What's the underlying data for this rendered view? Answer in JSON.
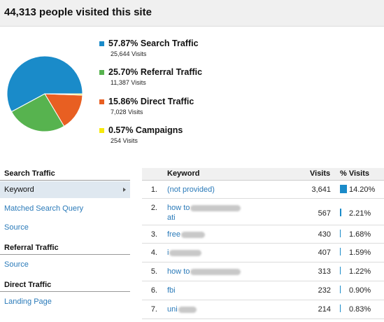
{
  "header": {
    "title": "44,313 people visited this site"
  },
  "colors": {
    "search": "#1a8bc9",
    "referral": "#57b34f",
    "direct": "#e85f22",
    "campaigns": "#f6e90d"
  },
  "chart_data": {
    "type": "pie",
    "categories": [
      "Search Traffic",
      "Referral Traffic",
      "Direct Traffic",
      "Campaigns"
    ],
    "values": [
      57.87,
      25.7,
      15.86,
      0.57
    ]
  },
  "legend": [
    {
      "label": "57.87% Search Traffic",
      "visits": "25,644 Visits",
      "color": "#1a8bc9"
    },
    {
      "label": "25.70% Referral Traffic",
      "visits": "11,387 Visits",
      "color": "#57b34f"
    },
    {
      "label": "15.86% Direct Traffic",
      "visits": "7,028 Visits",
      "color": "#e85f22"
    },
    {
      "label": "0.57% Campaigns",
      "visits": "254 Visits",
      "color": "#f6e90d"
    }
  ],
  "sidebar": {
    "search_heading": "Search Traffic",
    "keyword": "Keyword",
    "matched_query": "Matched Search Query",
    "search_source": "Source",
    "referral_heading": "Referral Traffic",
    "referral_source": "Source",
    "direct_heading": "Direct Traffic",
    "landing_page": "Landing Page"
  },
  "table": {
    "columns": {
      "keyword": "Keyword",
      "visits": "Visits",
      "pct": "% Visits"
    },
    "rows": [
      {
        "num": "1.",
        "keyword": "(not provided)",
        "keyword2": "",
        "visits": "3,641",
        "pct": "14.20%",
        "fraction": 0.142
      },
      {
        "num": "2.",
        "keyword": "how to",
        "keyword2": "ati",
        "visits": "567",
        "pct": "2.21%",
        "fraction": 0.0221
      },
      {
        "num": "3.",
        "keyword": "free",
        "keyword2": "",
        "visits": "430",
        "pct": "1.68%",
        "fraction": 0.0168
      },
      {
        "num": "4.",
        "keyword": "i",
        "keyword2": "",
        "visits": "407",
        "pct": "1.59%",
        "fraction": 0.0159
      },
      {
        "num": "5.",
        "keyword": "how to",
        "keyword2": "",
        "visits": "313",
        "pct": "1.22%",
        "fraction": 0.0122
      },
      {
        "num": "6.",
        "keyword": "fbi",
        "keyword2": "",
        "visits": "232",
        "pct": "0.90%",
        "fraction": 0.009
      },
      {
        "num": "7.",
        "keyword": "uni",
        "keyword2": "",
        "visits": "214",
        "pct": "0.83%",
        "fraction": 0.0083
      }
    ]
  }
}
